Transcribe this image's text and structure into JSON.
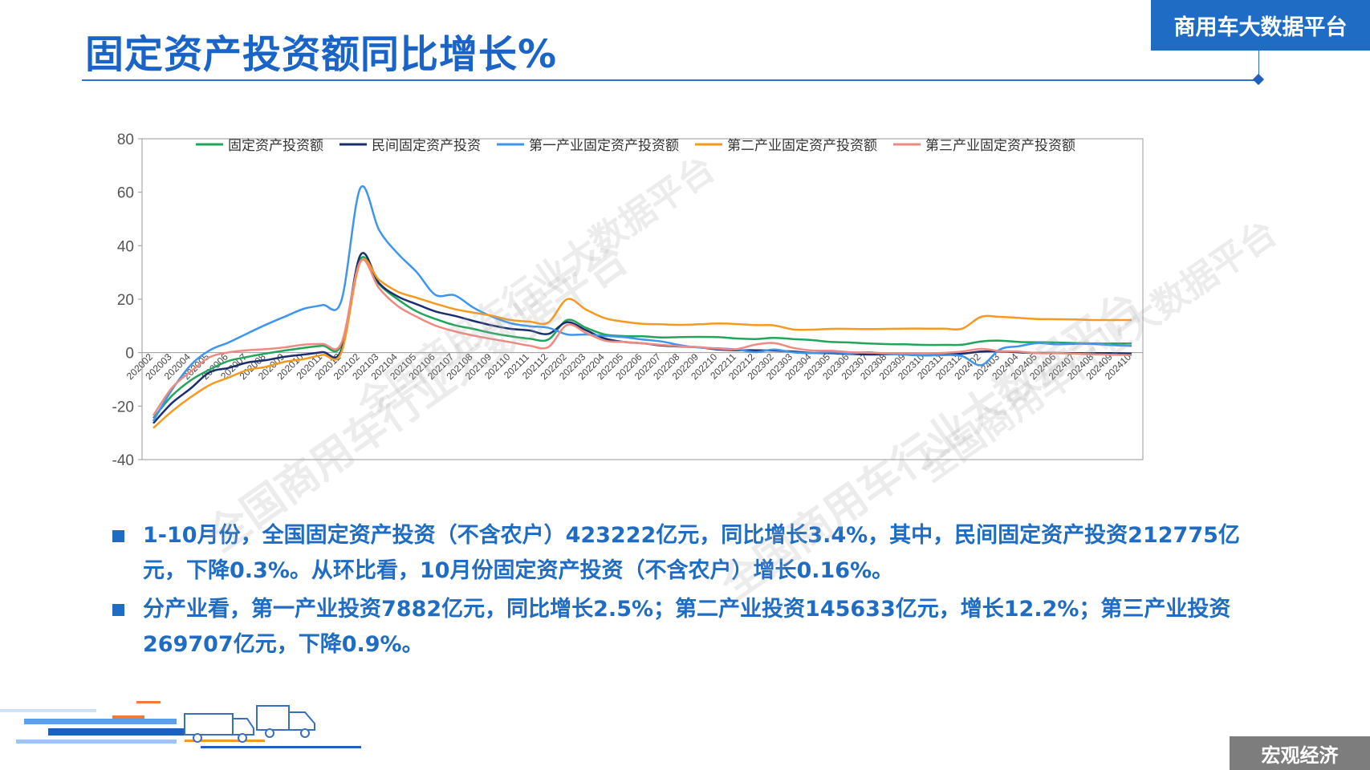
{
  "header": {
    "title": "固定资产投资额同比增长%",
    "brand": "商用车大数据平台"
  },
  "watermarks": [
    "全国商用车行业大数据平台",
    "全国商用车行业大数据平台",
    "全国商用车行业大数据平台",
    "全国商用车行业大数据平台"
  ],
  "chart_data": {
    "type": "line",
    "title": "",
    "xlabel": "",
    "ylabel": "",
    "ylim": [
      -40,
      80
    ],
    "yticks": [
      80,
      60,
      40,
      20,
      0,
      -20,
      -40
    ],
    "grid": false,
    "legend_position": "top",
    "categories": [
      "202002",
      "202003",
      "202004",
      "202005",
      "202006",
      "202007",
      "202008",
      "202009",
      "202010",
      "202011",
      "202012",
      "202102",
      "202103",
      "202104",
      "202105",
      "202106",
      "202107",
      "202108",
      "202109",
      "202110",
      "202111",
      "202112",
      "202202",
      "202203",
      "202204",
      "202205",
      "202206",
      "202207",
      "202208",
      "202209",
      "202210",
      "202211",
      "202212",
      "202302",
      "202303",
      "202304",
      "202305",
      "202306",
      "202307",
      "202308",
      "202309",
      "202310",
      "202311",
      "202312",
      "202402",
      "202403",
      "202404",
      "202405",
      "202406",
      "202407",
      "202408",
      "202409",
      "202410"
    ],
    "series": [
      {
        "name": "固定资产投资额",
        "color": "#1fa65a",
        "values": [
          -24.5,
          -16.1,
          -10.3,
          -6.3,
          -3.1,
          -1.6,
          -0.3,
          0.8,
          1.8,
          2.6,
          2.9,
          35.0,
          25.6,
          19.9,
          15.4,
          12.6,
          10.3,
          8.9,
          7.3,
          6.1,
          5.2,
          4.9,
          12.2,
          9.3,
          6.8,
          6.2,
          6.1,
          5.7,
          5.8,
          5.9,
          5.8,
          5.3,
          5.1,
          5.5,
          5.1,
          4.7,
          4.0,
          3.8,
          3.4,
          3.2,
          3.1,
          2.9,
          2.9,
          3.0,
          4.2,
          4.5,
          4.0,
          3.9,
          3.8,
          3.6,
          3.4,
          3.4,
          3.4
        ]
      },
      {
        "name": "民间固定资产投资",
        "color": "#1b2e6e",
        "values": [
          -26.4,
          -18.8,
          -13.3,
          -7.3,
          -5.7,
          -3.7,
          -2.8,
          -1.5,
          -0.7,
          0.2,
          1.0,
          36.4,
          26.0,
          21.0,
          18.1,
          15.4,
          13.8,
          11.9,
          10.2,
          8.9,
          8.3,
          7.0,
          11.4,
          8.4,
          5.3,
          4.0,
          3.5,
          2.7,
          2.3,
          2.0,
          1.2,
          0.9,
          0.9,
          0.8,
          0.4,
          -0.1,
          -0.2,
          -0.5,
          -0.7,
          -0.6,
          -0.6,
          -0.5,
          -0.5,
          -0.4,
          0.4,
          0.5,
          0.1,
          -0.1,
          -0.1,
          -0.2,
          -0.2,
          -0.2,
          -0.3
        ]
      },
      {
        "name": "第一产业固定资产投资额",
        "color": "#3e95ef",
        "values": [
          -25.6,
          -13.8,
          -4.6,
          0.9,
          3.8,
          7.2,
          10.5,
          13.5,
          16.4,
          17.8,
          19.5,
          61.5,
          45.9,
          37.0,
          30.1,
          21.6,
          21.5,
          16.9,
          13.5,
          11.0,
          9.9,
          9.3,
          6.8,
          6.8,
          6.3,
          5.8,
          4.9,
          4.2,
          2.8,
          1.9,
          1.6,
          1.2,
          0.2,
          1.2,
          0.1,
          -0.2,
          0.1,
          -0.3,
          0.1,
          -0.5,
          -0.8,
          -1.1,
          -0.9,
          -1.3,
          -4.7,
          1.2,
          2.4,
          3.6,
          3.1,
          3.3,
          3.2,
          2.8,
          2.5
        ]
      },
      {
        "name": "第二产业固定资产投资额",
        "color": "#f59a1e",
        "values": [
          -28.2,
          -21.9,
          -16.6,
          -12.1,
          -9.3,
          -6.5,
          -5.3,
          -3.4,
          -2.4,
          -0.8,
          0.1,
          33.8,
          27.2,
          22.8,
          20.5,
          18.3,
          16.3,
          15.0,
          13.8,
          12.2,
          11.6,
          11.3,
          20.0,
          16.1,
          12.9,
          11.6,
          10.8,
          10.6,
          10.4,
          10.6,
          10.9,
          10.7,
          10.3,
          10.2,
          8.7,
          8.6,
          8.9,
          8.9,
          8.8,
          8.9,
          9.0,
          9.0,
          9.0,
          9.0,
          13.4,
          13.4,
          13.0,
          12.6,
          12.5,
          12.4,
          12.2,
          12.2,
          12.2
        ]
      },
      {
        "name": "第三产业固定资产投资额",
        "color": "#ef8a80",
        "values": [
          -23.5,
          -13.1,
          -7.0,
          -1.7,
          0.1,
          0.9,
          1.3,
          2.0,
          3.0,
          3.3,
          3.6,
          34.1,
          24.1,
          17.4,
          13.4,
          10.1,
          8.0,
          6.4,
          5.1,
          3.9,
          2.6,
          2.1,
          10.4,
          7.4,
          4.5,
          4.0,
          3.5,
          2.9,
          2.4,
          2.1,
          1.5,
          1.3,
          3.0,
          3.6,
          1.8,
          0.8,
          0.7,
          0.2,
          -0.0,
          -0.2,
          -0.2,
          -0.3,
          -0.1,
          0.4,
          1.4,
          0.6,
          0.4,
          -0.2,
          -0.2,
          -0.4,
          -0.6,
          -0.8,
          -0.9
        ]
      }
    ]
  },
  "bullets": [
    "1-10月份，全国固定资产投资（不含农户）423222亿元，同比增长3.4%，其中，民间固定资产投资212775亿元，下降0.3%。从环比看，10月份固定资产投资（不含农户）增长0.16%。",
    "分产业看，第一产业投资7882亿元，同比增长2.5%；第二产业投资145633亿元，增长12.2%；第三产业投资269707亿元，下降0.9%。"
  ],
  "footer": {
    "section_label": "宏观经济"
  }
}
